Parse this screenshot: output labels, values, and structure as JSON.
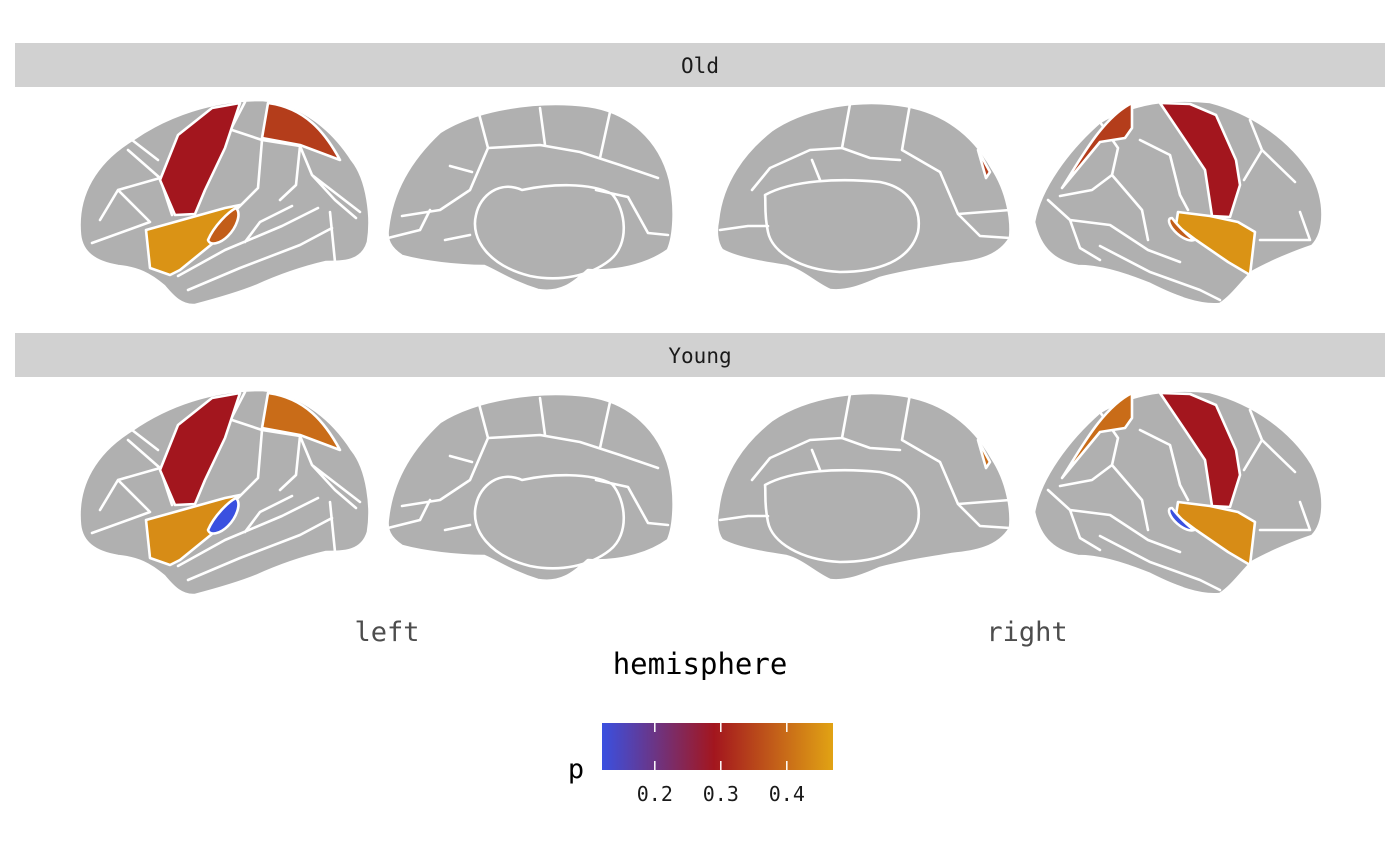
{
  "chart_data": {
    "type": "brain_atlas",
    "facets": [
      {
        "label": "Old",
        "regions": [
          {
            "name": "precentral",
            "p": 0.29
          },
          {
            "name": "superiorparietal",
            "p": 0.34
          },
          {
            "name": "superiortemporal",
            "p": 0.45
          },
          {
            "name": "transversetemporal",
            "p": 0.38
          }
        ]
      },
      {
        "label": "Young",
        "regions": [
          {
            "name": "precentral",
            "p": 0.29
          },
          {
            "name": "superiorparietal",
            "p": 0.4
          },
          {
            "name": "superiortemporal",
            "p": 0.44
          },
          {
            "name": "transversetemporal",
            "p": 0.12
          }
        ]
      }
    ],
    "x_ticks": [
      "left",
      "right"
    ],
    "xlabel": "hemisphere",
    "legend": {
      "title": "p",
      "position": "bottom",
      "ticks": [
        "0.2",
        "0.3",
        "0.4"
      ],
      "tick_values": [
        0.2,
        0.3,
        0.4
      ],
      "range": [
        0.12,
        0.47
      ],
      "colors": [
        "#3a50e0",
        "#a3161e",
        "#e1a314"
      ]
    },
    "grid": false
  }
}
